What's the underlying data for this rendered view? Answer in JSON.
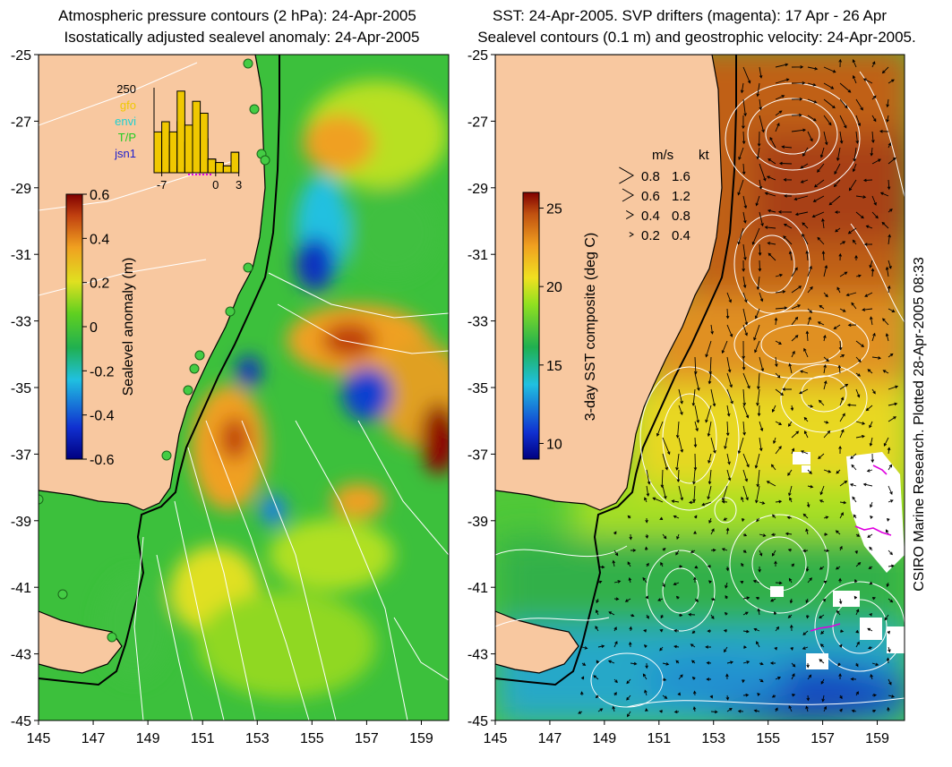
{
  "left_panel": {
    "title_line1": "Atmospheric pressure contours (2 hPa): 24-Apr-2005",
    "title_line2": "Isostatically adjusted sealevel anomaly: 24-Apr-2005",
    "colorbar": {
      "label": "Sealevel anomaly (m)",
      "min": -0.6,
      "max": 0.6,
      "ticks": [
        "0.6",
        "0.4",
        "0.2",
        "0",
        "-0.2",
        "-0.4",
        "-0.6"
      ],
      "tick_values": [
        0.6,
        0.4,
        0.2,
        0,
        -0.2,
        -0.4,
        -0.6
      ]
    },
    "inset_histogram": {
      "ymax_label": "250",
      "legend": [
        {
          "label": "gfo",
          "color": "#f0c800"
        },
        {
          "label": "envi",
          "color": "#20d0d0"
        },
        {
          "label": "T/P",
          "color": "#22cc22"
        },
        {
          "label": "jsn1",
          "color": "#2020cc"
        }
      ],
      "x_ticks": [
        "-7",
        "0",
        "3"
      ],
      "x_tick_values": [
        -7,
        0,
        3
      ],
      "bars": [
        {
          "jsn1": 20,
          "tp": 25,
          "envi": 60,
          "gfo": 120
        },
        {
          "jsn1": 30,
          "tp": 20,
          "envi": 40,
          "gfo": 150
        },
        {
          "jsn1": 20,
          "tp": 15,
          "envi": 80,
          "gfo": 120
        },
        {
          "jsn1": 20,
          "tp": 10,
          "envi": 150,
          "gfo": 240
        },
        {
          "jsn1": 15,
          "tp": 0,
          "envi": 90,
          "gfo": 140
        },
        {
          "jsn1": 20,
          "tp": 10,
          "envi": 130,
          "gfo": 210
        },
        {
          "jsn1": 20,
          "tp": 0,
          "envi": 100,
          "gfo": 175
        },
        {
          "jsn1": 40,
          "tp": 0,
          "envi": 40,
          "gfo": 40
        },
        {
          "jsn1": 30,
          "tp": 0,
          "envi": 30,
          "gfo": 30
        },
        {
          "jsn1": 20,
          "tp": 0,
          "envi": 20,
          "gfo": 20
        },
        {
          "jsn1": 60,
          "tp": 0,
          "envi": 60,
          "gfo": 60
        }
      ]
    },
    "x_ticks": [
      "145",
      "147",
      "149",
      "151",
      "153",
      "155",
      "157",
      "159"
    ],
    "y_ticks": [
      "-25",
      "-27",
      "-29",
      "-31",
      "-33",
      "-35",
      "-37",
      "-39",
      "-41",
      "-43",
      "-45"
    ]
  },
  "right_panel": {
    "title_line1": "SST: 24-Apr-2005. SVP drifters (magenta): 17 Apr - 26 Apr",
    "title_line2": "Sealevel contours (0.1 m) and geostrophic velocity: 24-Apr-2005.",
    "colorbar": {
      "label": "3-day SST composite (deg C)",
      "min": 9,
      "max": 26,
      "ticks": [
        "25",
        "20",
        "15",
        "10"
      ],
      "tick_values": [
        25,
        20,
        15,
        10
      ]
    },
    "velocity_legend": {
      "header_ms": "m/s",
      "header_kt": "kt",
      "rows": [
        {
          "ms": "0.8",
          "kt": "1.6"
        },
        {
          "ms": "0.6",
          "kt": "1.2"
        },
        {
          "ms": "0.4",
          "kt": "0.8"
        },
        {
          "ms": "0.2",
          "kt": "0.4"
        }
      ]
    },
    "x_ticks": [
      "145",
      "147",
      "149",
      "151",
      "153",
      "155",
      "157",
      "159"
    ],
    "y_ticks": [
      "-25",
      "-27",
      "-29",
      "-31",
      "-33",
      "-35",
      "-37",
      "-39",
      "-41",
      "-43",
      "-45"
    ]
  },
  "credit": "CSIRO Marine Research. Plotted 28-Apr-2005 08:33",
  "colors": {
    "land": "#f8c8a0",
    "coast": "#000000",
    "contour": "#ffffff",
    "station": "#44cc44"
  }
}
